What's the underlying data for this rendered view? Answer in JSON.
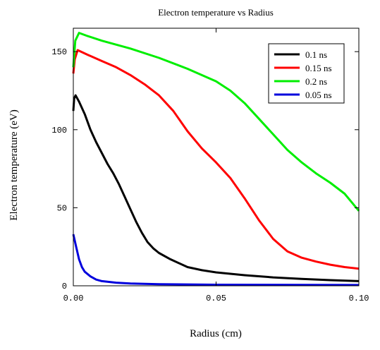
{
  "chart_data": {
    "type": "line",
    "title": "Electron temperature vs Radius",
    "xlabel": "Radius (cm)",
    "ylabel": "Electron temperature (eV)",
    "xlim": [
      0,
      0.1
    ],
    "ylim": [
      0,
      165
    ],
    "x_ticks": [
      0.0,
      0.05,
      0.1
    ],
    "x_tick_labels": [
      "0.00",
      "0.05",
      "0.10"
    ],
    "y_ticks": [
      0,
      50,
      100,
      150
    ],
    "y_tick_labels": [
      "0",
      "50",
      "100",
      "150"
    ],
    "grid": false,
    "legend_position": "top-right",
    "series": [
      {
        "name": "0.1 ns",
        "color": "#000000",
        "points": [
          [
            0,
            112
          ],
          [
            0.0003,
            120
          ],
          [
            0.0008,
            122
          ],
          [
            0.002,
            118
          ],
          [
            0.004,
            110
          ],
          [
            0.006,
            100
          ],
          [
            0.008,
            92
          ],
          [
            0.01,
            85
          ],
          [
            0.012,
            78
          ],
          [
            0.014,
            72
          ],
          [
            0.016,
            65
          ],
          [
            0.018,
            57
          ],
          [
            0.02,
            49
          ],
          [
            0.022,
            41
          ],
          [
            0.024,
            34
          ],
          [
            0.026,
            28
          ],
          [
            0.028,
            24
          ],
          [
            0.03,
            21
          ],
          [
            0.034,
            17
          ],
          [
            0.04,
            12
          ],
          [
            0.045,
            10
          ],
          [
            0.05,
            8.6
          ],
          [
            0.06,
            6.8
          ],
          [
            0.07,
            5.4
          ],
          [
            0.08,
            4.4
          ],
          [
            0.09,
            3.6
          ],
          [
            0.1,
            3.0
          ]
        ]
      },
      {
        "name": "0.15 ns",
        "color": "#ff0000",
        "points": [
          [
            0,
            136
          ],
          [
            0.0005,
            145
          ],
          [
            0.0015,
            151
          ],
          [
            0.005,
            148
          ],
          [
            0.01,
            144
          ],
          [
            0.015,
            140
          ],
          [
            0.02,
            135
          ],
          [
            0.025,
            129
          ],
          [
            0.03,
            122
          ],
          [
            0.035,
            112
          ],
          [
            0.04,
            99
          ],
          [
            0.045,
            88
          ],
          [
            0.05,
            79
          ],
          [
            0.055,
            69
          ],
          [
            0.06,
            56
          ],
          [
            0.065,
            42
          ],
          [
            0.07,
            30
          ],
          [
            0.075,
            22
          ],
          [
            0.08,
            18
          ],
          [
            0.085,
            15.5
          ],
          [
            0.09,
            13.5
          ],
          [
            0.095,
            12
          ],
          [
            0.1,
            11
          ]
        ]
      },
      {
        "name": "0.2 ns",
        "color": "#00ee00",
        "points": [
          [
            0,
            140
          ],
          [
            0.0007,
            157
          ],
          [
            0.002,
            162
          ],
          [
            0.005,
            160
          ],
          [
            0.01,
            157
          ],
          [
            0.02,
            152
          ],
          [
            0.03,
            146
          ],
          [
            0.04,
            139
          ],
          [
            0.05,
            131
          ],
          [
            0.055,
            125
          ],
          [
            0.06,
            117
          ],
          [
            0.065,
            107
          ],
          [
            0.07,
            97
          ],
          [
            0.075,
            87
          ],
          [
            0.08,
            79
          ],
          [
            0.085,
            72
          ],
          [
            0.09,
            66
          ],
          [
            0.095,
            59
          ],
          [
            0.1,
            48
          ]
        ]
      },
      {
        "name": "0.05 ns",
        "color": "#0000dd",
        "points": [
          [
            0,
            33
          ],
          [
            0.001,
            25
          ],
          [
            0.002,
            17
          ],
          [
            0.003,
            12
          ],
          [
            0.004,
            9
          ],
          [
            0.006,
            6
          ],
          [
            0.008,
            4
          ],
          [
            0.01,
            3
          ],
          [
            0.015,
            2
          ],
          [
            0.02,
            1.5
          ],
          [
            0.03,
            1
          ],
          [
            0.05,
            0.7
          ],
          [
            0.1,
            0.5
          ]
        ]
      }
    ]
  }
}
